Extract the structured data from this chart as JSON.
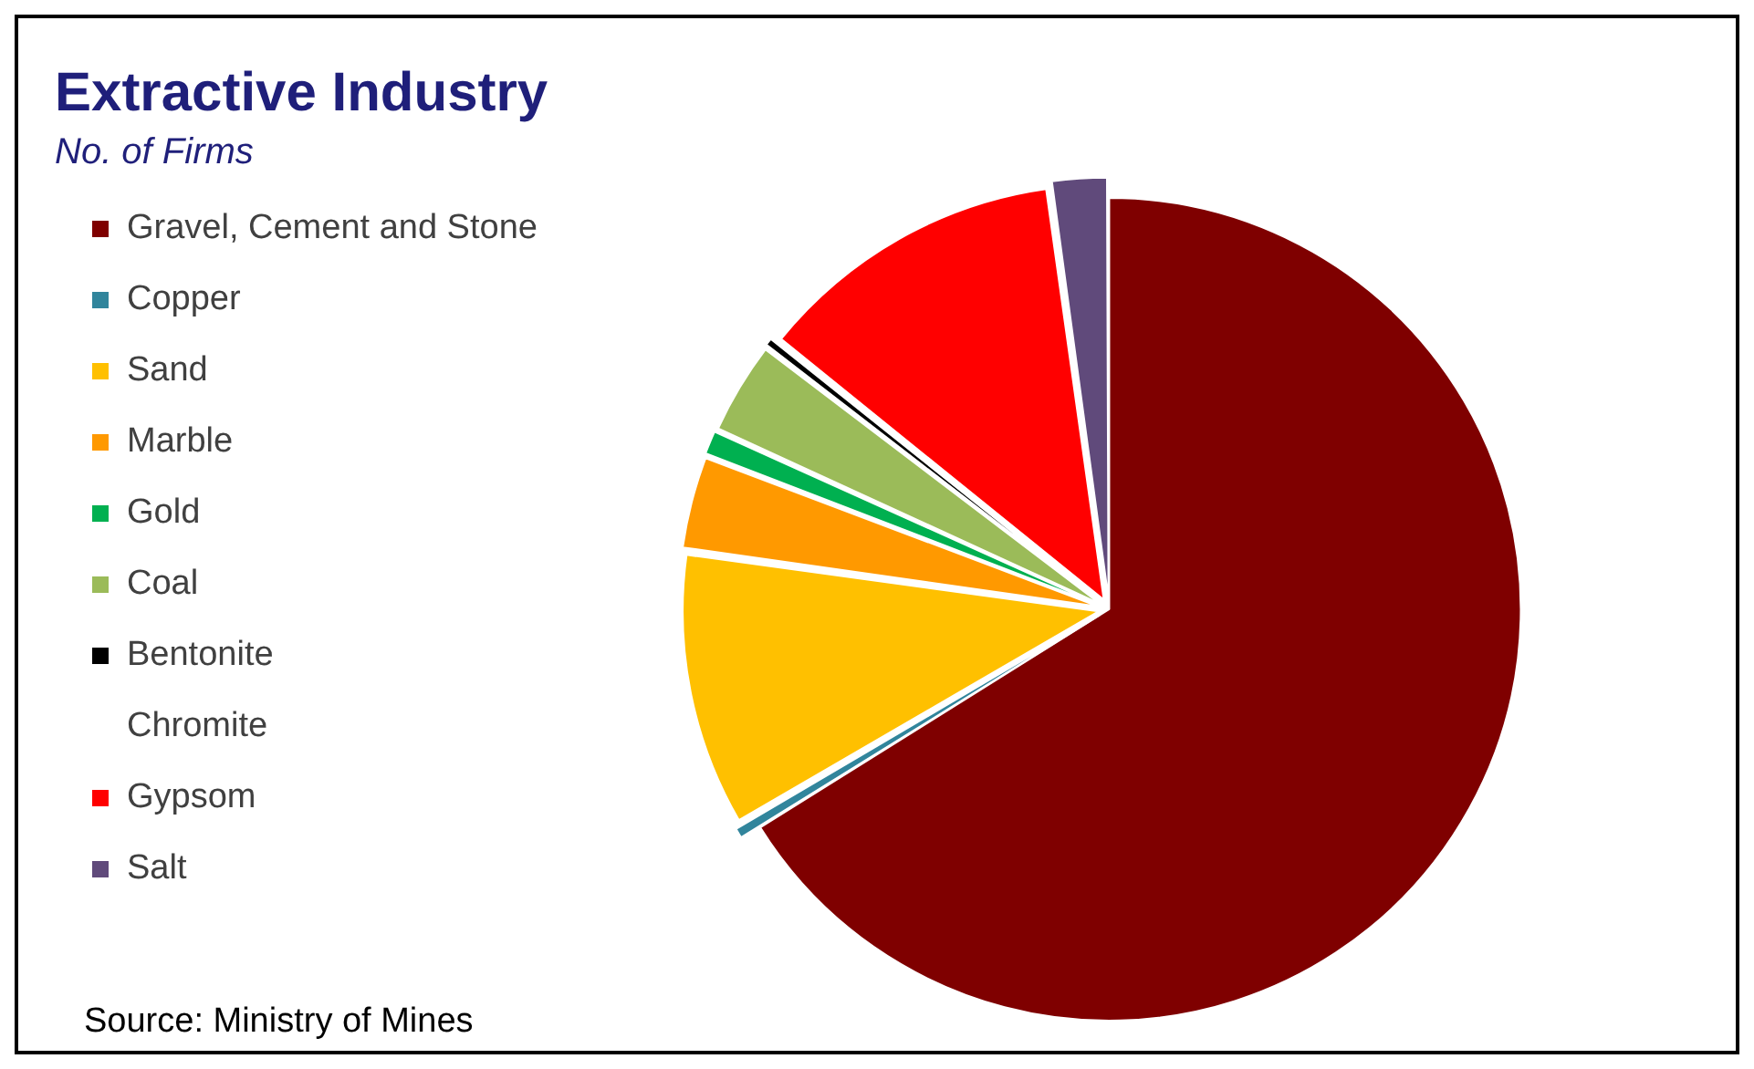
{
  "chart_data": {
    "type": "pie",
    "title": "Extractive Industry",
    "subtitle": "No. of Firms",
    "categories": [
      "Gravel, Cement and Stone",
      "Copper",
      "Sand",
      "Marble",
      "Gold",
      "Coal",
      "Bentonite",
      "Chromite",
      "Gypsom",
      "Salt"
    ],
    "values": [
      66.1,
      0.5,
      10.6,
      3.6,
      1,
      3.6,
      0.4,
      0,
      12,
      2.2
    ],
    "colors": [
      "#7f0000",
      "#31859c",
      "#ffc000",
      "#ff9900",
      "#00b050",
      "#9bbb59",
      "#000000",
      "#ffffff",
      "#ff0000",
      "#604a7b"
    ],
    "legend": "left",
    "annotations": [
      "Source: Ministry of Mines"
    ]
  }
}
